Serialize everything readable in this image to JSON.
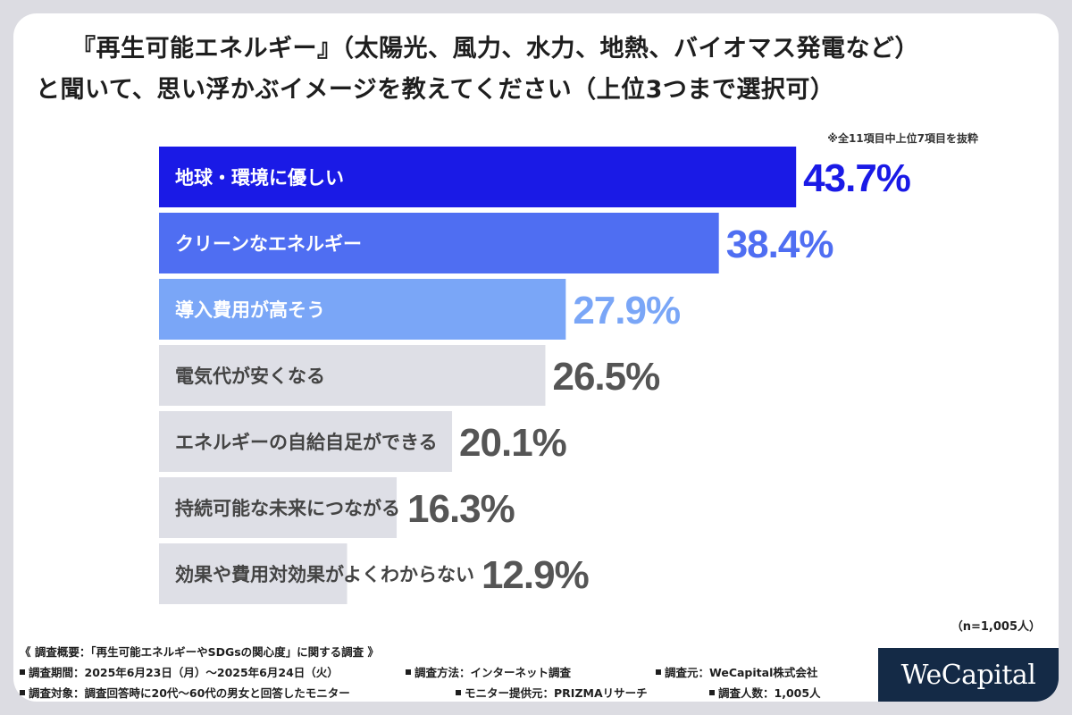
{
  "title": {
    "line1": "『再生可能エネルギー』（太陽光、風力、水力、地熱、バイオマス発電など）",
    "line2": "と聞いて、思い浮かぶイメージを教えてください（上位3つまで選択可）"
  },
  "note": "※全11項目中上位7項目を抜粋",
  "chart_data": {
    "type": "bar",
    "orientation": "horizontal",
    "categories": [
      "地球・環境に優しい",
      "クリーンなエネルギー",
      "導入費用が高そう",
      "電気代が安くなる",
      "エネルギーの自給自足ができる",
      "持続可能な未来につながる",
      "効果や費用対効果がよくわからない"
    ],
    "values": [
      43.7,
      38.4,
      27.9,
      26.5,
      20.1,
      16.3,
      12.9
    ],
    "value_labels": [
      "43.7%",
      "38.4%",
      "27.9%",
      "26.5%",
      "20.1%",
      "16.3%",
      "12.9%"
    ],
    "unit": "%",
    "colors": {
      "bars": [
        "#1a1ae6",
        "#4f6ef2",
        "#7aa6f7",
        "#dedfe6",
        "#dedfe6",
        "#dedfe6",
        "#dedfe6"
      ],
      "label_text": [
        "#ffffff",
        "#ffffff",
        "#ffffff",
        "#444444",
        "#444444",
        "#444444",
        "#444444"
      ],
      "value_text": [
        "#1a1ae6",
        "#4f6ef2",
        "#7aa6f7",
        "#555555",
        "#555555",
        "#555555",
        "#555555"
      ]
    },
    "legend": "none",
    "grid": false
  },
  "sample": "（n=1,005人）",
  "footer": {
    "overview": "《 調査概要：「再生可能エネルギーやSDGsの関心度」に関する調査 》",
    "period": "調査期間：2025年6月23日（月）～2025年6月24日（火）",
    "method": "調査方法：インターネット調査",
    "source": "調査元：WeCapital株式会社",
    "target": "調査対象：調査回答時に20代～60代の男女と回答したモニター",
    "provider": "モニター提供元：PRIZMAリサーチ",
    "count": "調査人数：1,005人"
  },
  "logo": "WeCapital"
}
